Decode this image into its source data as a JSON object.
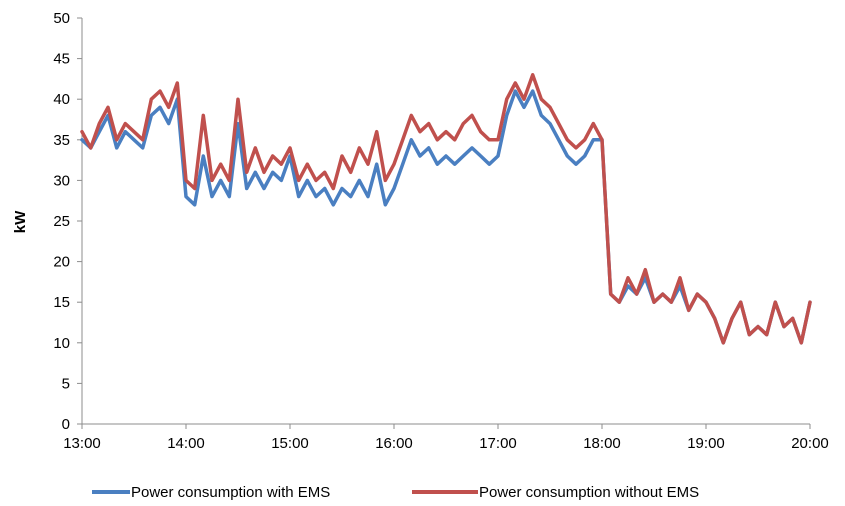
{
  "chart_data": {
    "type": "line",
    "title": "",
    "xlabel": "",
    "ylabel": "kW",
    "ylim": [
      0,
      50
    ],
    "yticks": [
      0,
      5,
      10,
      15,
      20,
      25,
      30,
      35,
      40,
      45,
      50
    ],
    "xticks": [
      "13:00",
      "14:00",
      "15:00",
      "16:00",
      "17:00",
      "18:00",
      "19:00",
      "20:00"
    ],
    "grid": false,
    "legend_position": "bottom",
    "series": [
      {
        "name": "Power consumption with EMS",
        "color": "#4a7fc1",
        "x": [
          "13:00",
          "13:05",
          "13:10",
          "13:15",
          "13:20",
          "13:25",
          "13:30",
          "13:35",
          "13:40",
          "13:45",
          "13:50",
          "13:55",
          "14:00",
          "14:05",
          "14:10",
          "14:15",
          "14:20",
          "14:25",
          "14:30",
          "14:35",
          "14:40",
          "14:45",
          "14:50",
          "14:55",
          "15:00",
          "15:05",
          "15:10",
          "15:15",
          "15:20",
          "15:25",
          "15:30",
          "15:35",
          "15:40",
          "15:45",
          "15:50",
          "15:55",
          "16:00",
          "16:05",
          "16:10",
          "16:15",
          "16:20",
          "16:25",
          "16:30",
          "16:35",
          "16:40",
          "16:45",
          "16:50",
          "16:55",
          "17:00",
          "17:05",
          "17:10",
          "17:15",
          "17:20",
          "17:25",
          "17:30",
          "17:35",
          "17:40",
          "17:45",
          "17:50",
          "17:55",
          "18:00",
          "18:05",
          "18:10",
          "18:15",
          "18:20",
          "18:25",
          "18:30",
          "18:35",
          "18:40",
          "18:45",
          "18:50",
          "18:55",
          "19:00",
          "19:05",
          "19:10",
          "19:15",
          "19:20",
          "19:25",
          "19:30",
          "19:35",
          "19:40",
          "19:45",
          "19:50",
          "19:55",
          "20:00"
        ],
        "values": [
          35,
          34,
          36,
          38,
          34,
          36,
          35,
          34,
          38,
          39,
          37,
          40,
          28,
          27,
          33,
          28,
          30,
          28,
          37,
          29,
          31,
          29,
          31,
          30,
          33,
          28,
          30,
          28,
          29,
          27,
          29,
          28,
          30,
          28,
          32,
          27,
          29,
          32,
          35,
          33,
          34,
          32,
          33,
          32,
          33,
          34,
          33,
          32,
          33,
          38,
          41,
          39,
          41,
          38,
          37,
          35,
          33,
          32,
          33,
          35,
          35,
          16,
          15,
          17,
          16,
          18,
          15,
          16,
          15,
          17,
          14,
          16,
          15,
          13,
          10,
          13,
          15,
          11,
          12,
          11,
          15,
          12,
          13,
          10,
          15
        ]
      },
      {
        "name": "Power consumption without EMS",
        "color": "#c0504d",
        "x": [
          "13:00",
          "13:05",
          "13:10",
          "13:15",
          "13:20",
          "13:25",
          "13:30",
          "13:35",
          "13:40",
          "13:45",
          "13:50",
          "13:55",
          "14:00",
          "14:05",
          "14:10",
          "14:15",
          "14:20",
          "14:25",
          "14:30",
          "14:35",
          "14:40",
          "14:45",
          "14:50",
          "14:55",
          "15:00",
          "15:05",
          "15:10",
          "15:15",
          "15:20",
          "15:25",
          "15:30",
          "15:35",
          "15:40",
          "15:45",
          "15:50",
          "15:55",
          "16:00",
          "16:05",
          "16:10",
          "16:15",
          "16:20",
          "16:25",
          "16:30",
          "16:35",
          "16:40",
          "16:45",
          "16:50",
          "16:55",
          "17:00",
          "17:05",
          "17:10",
          "17:15",
          "17:20",
          "17:25",
          "17:30",
          "17:35",
          "17:40",
          "17:45",
          "17:50",
          "17:55",
          "18:00",
          "18:05",
          "18:10",
          "18:15",
          "18:20",
          "18:25",
          "18:30",
          "18:35",
          "18:40",
          "18:45",
          "18:50",
          "18:55",
          "19:00",
          "19:05",
          "19:10",
          "19:15",
          "19:20",
          "19:25",
          "19:30",
          "19:35",
          "19:40",
          "19:45",
          "19:50",
          "19:55",
          "20:00"
        ],
        "values": [
          36,
          34,
          37,
          39,
          35,
          37,
          36,
          35,
          40,
          41,
          39,
          42,
          30,
          29,
          38,
          30,
          32,
          30,
          40,
          31,
          34,
          31,
          33,
          32,
          34,
          30,
          32,
          30,
          31,
          29,
          33,
          31,
          34,
          32,
          36,
          30,
          32,
          35,
          38,
          36,
          37,
          35,
          36,
          35,
          37,
          38,
          36,
          35,
          35,
          40,
          42,
          40,
          43,
          40,
          39,
          37,
          35,
          34,
          35,
          37,
          35,
          16,
          15,
          18,
          16,
          19,
          15,
          16,
          15,
          18,
          14,
          16,
          15,
          13,
          10,
          13,
          15,
          11,
          12,
          11,
          15,
          12,
          13,
          10,
          15
        ]
      }
    ]
  }
}
